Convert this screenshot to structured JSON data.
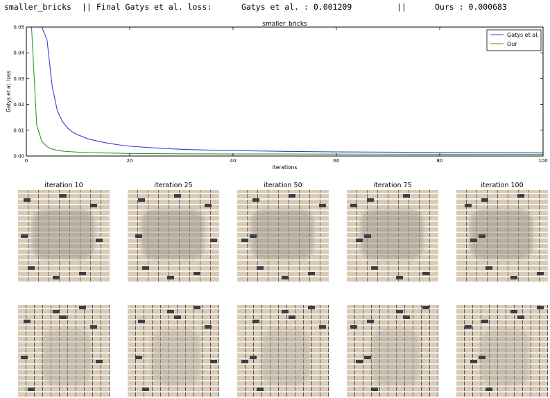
{
  "header": {
    "name": "smaller_bricks",
    "sep1": "||",
    "final_label": "Final Gatys et al. loss:",
    "gatys_text": "Gatys et al. : 0.001209",
    "sep2": "||",
    "ours_text": "Ours : 0.000683"
  },
  "chart_data": {
    "type": "line",
    "title": "smaller_bricks",
    "xlabel": "iterations",
    "ylabel": "Gatys et al. loss",
    "xlim": [
      0,
      100
    ],
    "ylim": [
      0,
      0.05
    ],
    "xticks": [
      0,
      20,
      40,
      60,
      80,
      100
    ],
    "yticks": [
      0.0,
      0.01,
      0.02,
      0.03,
      0.04,
      0.05
    ],
    "xtick_labels": [
      "0",
      "20",
      "40",
      "60",
      "80",
      "100"
    ],
    "ytick_labels": [
      "0.00",
      "0.01",
      "0.02",
      "0.03",
      "0.04",
      "0.05"
    ],
    "legend_position": "top-right",
    "grid": false,
    "series": [
      {
        "name": "Gatys et al.",
        "color": "#3b3bd8",
        "x": [
          3,
          4,
          5,
          6,
          7,
          8,
          9,
          10,
          12,
          14,
          16,
          18,
          20,
          25,
          30,
          35,
          40,
          50,
          60,
          70,
          80,
          90,
          100
        ],
        "y": [
          0.05,
          0.045,
          0.027,
          0.0175,
          0.0133,
          0.0108,
          0.0092,
          0.0082,
          0.0066,
          0.0057,
          0.0049,
          0.0043,
          0.0038,
          0.0031,
          0.0026,
          0.0023,
          0.0021,
          0.0018,
          0.0016,
          0.0015,
          0.00135,
          0.00127,
          0.0012
        ]
      },
      {
        "name": "Our",
        "color": "#2e9a2e",
        "x": [
          1,
          2,
          3,
          4,
          5,
          6,
          7,
          8,
          10,
          12,
          15,
          20,
          30,
          40,
          60,
          80,
          100
        ],
        "y": [
          0.05,
          0.012,
          0.0057,
          0.0036,
          0.0027,
          0.0022,
          0.0019,
          0.00175,
          0.0015,
          0.0013,
          0.0012,
          0.001,
          0.00085,
          0.0008,
          0.00075,
          0.0007,
          0.00068
        ]
      }
    ]
  },
  "tiles": {
    "titles": [
      "iteration 10",
      "iteration 25",
      "iteration 50",
      "iteration 75",
      "iteration 100"
    ]
  }
}
